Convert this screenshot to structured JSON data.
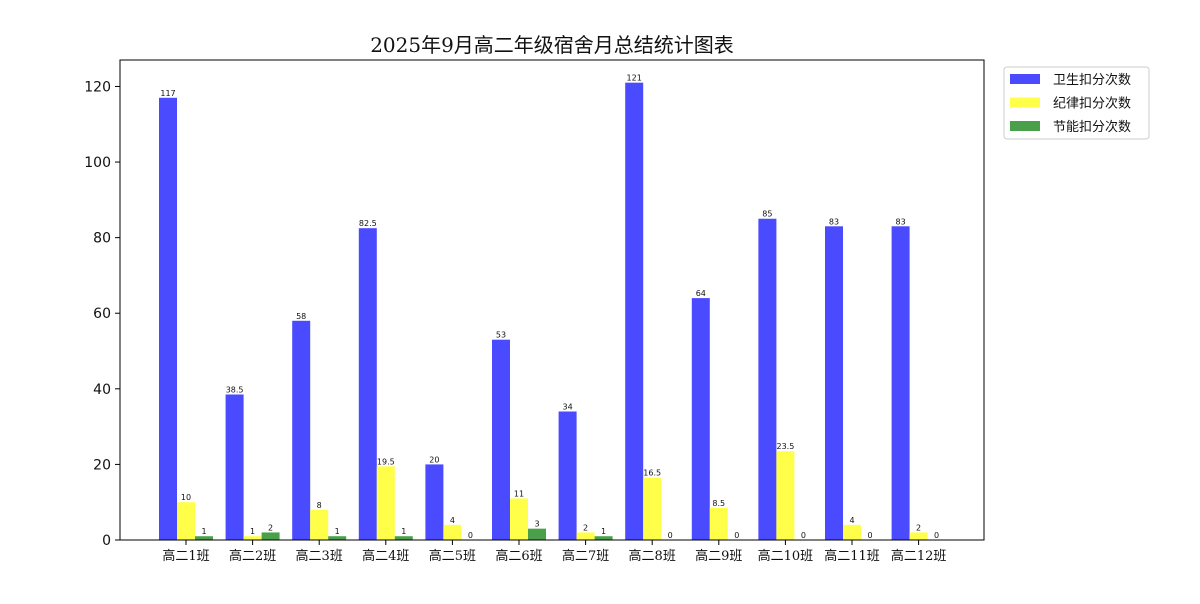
{
  "chart_data": {
    "type": "bar",
    "title": "2025年9月高二年级宿舍月总结统计图表",
    "xlabel": "",
    "ylabel": "",
    "ylim": [
      0,
      127
    ],
    "yticks": [
      0,
      20,
      40,
      60,
      80,
      100,
      120
    ],
    "grid": false,
    "legend_position": "outside-top-right",
    "categories": [
      "高二1班",
      "高二2班",
      "高二3班",
      "高二4班",
      "高二5班",
      "高二6班",
      "高二7班",
      "高二8班",
      "高二9班",
      "高二10班",
      "高二11班",
      "高二12班"
    ],
    "series": [
      {
        "name": "卫生扣分次数",
        "color": "#4a4aff",
        "values": [
          117,
          38.5,
          58,
          82.5,
          20,
          53,
          34,
          121,
          64,
          85,
          83,
          83
        ],
        "labels": [
          "117",
          "38.5",
          "58",
          "82.5",
          "20",
          "53",
          "34",
          "121",
          "64",
          "85",
          "83",
          "83"
        ]
      },
      {
        "name": "纪律扣分次数",
        "color": "#ffff4a",
        "values": [
          10,
          1,
          8,
          19.5,
          4,
          11,
          2,
          16.5,
          8.5,
          23.5,
          4,
          2
        ],
        "labels": [
          "10",
          "1",
          "8",
          "19.5",
          "4",
          "11",
          "2",
          "16.5",
          "8.5",
          "23.5",
          "4",
          "2"
        ]
      },
      {
        "name": "节能扣分次数",
        "color": "#4a9f4a",
        "values": [
          1,
          2,
          1,
          1,
          0,
          3,
          1,
          0,
          0,
          0,
          0,
          null
        ],
        "labels": [
          "1",
          "2",
          "1",
          "1",
          "0",
          "3",
          "1",
          "0",
          "0",
          "0",
          "0",
          "0"
        ]
      }
    ]
  }
}
